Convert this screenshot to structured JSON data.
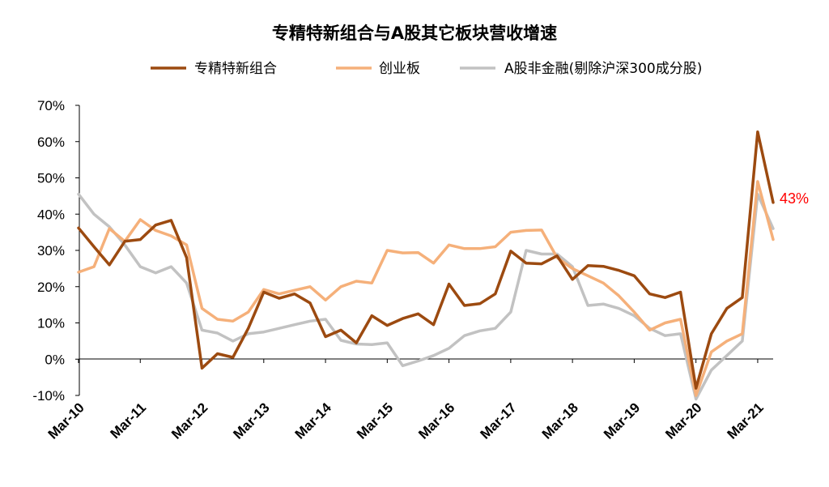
{
  "chart_data": {
    "type": "line",
    "title": "专精特新组合与A股其它板块营收增速",
    "xlabel": "",
    "ylabel": "",
    "ylim": [
      -0.1,
      0.7
    ],
    "yticks": [
      -0.1,
      0,
      0.1,
      0.2,
      0.3,
      0.4,
      0.5,
      0.6,
      0.7
    ],
    "ytick_labels": [
      "-10%",
      "0%",
      "10%",
      "20%",
      "30%",
      "40%",
      "50%",
      "60%",
      "70%"
    ],
    "x": [
      "2010-03",
      "2010-06",
      "2010-09",
      "2010-12",
      "2011-03",
      "2011-06",
      "2011-09",
      "2011-12",
      "2012-03",
      "2012-06",
      "2012-09",
      "2012-12",
      "2013-03",
      "2013-06",
      "2013-09",
      "2013-12",
      "2014-03",
      "2014-06",
      "2014-09",
      "2014-12",
      "2015-03",
      "2015-06",
      "2015-09",
      "2015-12",
      "2016-03",
      "2016-06",
      "2016-09",
      "2016-12",
      "2017-03",
      "2017-06",
      "2017-09",
      "2017-12",
      "2018-03",
      "2018-06",
      "2018-09",
      "2018-12",
      "2019-03",
      "2019-06",
      "2019-09",
      "2019-12",
      "2020-03",
      "2020-06",
      "2020-09",
      "2020-12",
      "2021-03",
      "2021-06"
    ],
    "x_tick_labels": [
      "Mar-10",
      "Mar-11",
      "Mar-12",
      "Mar-13",
      "Mar-14",
      "Mar-15",
      "Mar-16",
      "Mar-17",
      "Mar-18",
      "Mar-19",
      "Mar-20",
      "Mar-21"
    ],
    "grid": false,
    "legend_position": "top",
    "series": [
      {
        "name": "专精特新组合",
        "color": "#9c4a10",
        "values": [
          0.362,
          0.31,
          0.26,
          0.325,
          0.33,
          0.37,
          0.383,
          0.28,
          -0.025,
          0.015,
          0.005,
          0.085,
          0.185,
          0.168,
          0.18,
          0.155,
          0.062,
          0.08,
          0.045,
          0.12,
          0.093,
          0.112,
          0.125,
          0.095,
          0.207,
          0.148,
          0.153,
          0.18,
          0.298,
          0.265,
          0.263,
          0.285,
          0.22,
          0.258,
          0.256,
          0.245,
          0.23,
          0.18,
          0.17,
          0.185,
          -0.08,
          0.07,
          0.14,
          0.17,
          0.627,
          0.432
        ]
      },
      {
        "name": "创业板",
        "color": "#f5b07a",
        "values": [
          0.24,
          0.255,
          0.36,
          0.325,
          0.385,
          0.355,
          0.34,
          0.315,
          0.14,
          0.11,
          0.105,
          0.13,
          0.192,
          0.18,
          0.19,
          0.2,
          0.163,
          0.2,
          0.215,
          0.21,
          0.3,
          0.293,
          0.294,
          0.265,
          0.315,
          0.305,
          0.305,
          0.31,
          0.35,
          0.355,
          0.356,
          0.28,
          0.25,
          0.23,
          0.21,
          0.175,
          0.13,
          0.08,
          0.1,
          0.11,
          -0.1,
          0.02,
          0.05,
          0.07,
          0.49,
          0.33
        ]
      },
      {
        "name": "A股非金融(剔除沪深300成分股)",
        "color": "#c2c2c2",
        "values": [
          0.455,
          0.4,
          0.365,
          0.315,
          0.255,
          0.238,
          0.255,
          0.21,
          0.08,
          0.072,
          0.05,
          0.07,
          0.075,
          0.085,
          0.095,
          0.105,
          0.11,
          0.052,
          0.042,
          0.04,
          0.045,
          -0.018,
          -0.005,
          0.01,
          0.03,
          0.065,
          0.078,
          0.085,
          0.13,
          0.3,
          0.29,
          0.29,
          0.255,
          0.148,
          0.152,
          0.14,
          0.12,
          0.085,
          0.065,
          0.07,
          -0.11,
          -0.03,
          0.01,
          0.05,
          0.455,
          0.36
        ]
      }
    ],
    "annotations": [
      {
        "text": "43%",
        "color": "#ff0000"
      }
    ]
  }
}
